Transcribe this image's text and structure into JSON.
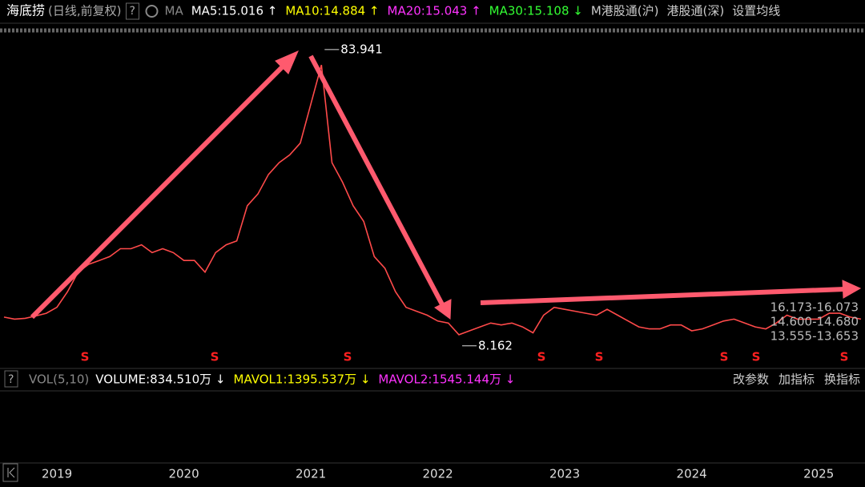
{
  "header": {
    "title": "海底捞",
    "mode": "(日线,前复权)",
    "help": "?",
    "ma_label": "MA",
    "ma": [
      {
        "text": "MA5:15.016 ↑",
        "color": "#ffffff"
      },
      {
        "text": "MA10:14.884 ↑",
        "color": "#ffff00"
      },
      {
        "text": "MA20:15.043 ↑",
        "color": "#ff33ff"
      },
      {
        "text": "MA30:15.108 ↓",
        "color": "#33ff33"
      }
    ],
    "tabs": [
      "M港股通(沪)",
      "港股通(深)",
      "设置均线"
    ]
  },
  "chart_data": {
    "type": "line",
    "color": "#ff4a4a",
    "categories": [
      null,
      null,
      null,
      null,
      null,
      "2019",
      null,
      null,
      null,
      null,
      null,
      null,
      null,
      null,
      null,
      null,
      null,
      "2020",
      null,
      null,
      null,
      null,
      null,
      null,
      null,
      null,
      null,
      null,
      null,
      "2021",
      null,
      null,
      null,
      null,
      null,
      null,
      null,
      null,
      null,
      null,
      null,
      "2022",
      null,
      null,
      null,
      null,
      null,
      null,
      null,
      null,
      null,
      null,
      null,
      "2023",
      null,
      null,
      null,
      null,
      null,
      null,
      null,
      null,
      null,
      null,
      null,
      "2024",
      null,
      null,
      null,
      null,
      null,
      null,
      null,
      null,
      null,
      null,
      null,
      "2025",
      null,
      null,
      null,
      null
    ],
    "values": [
      15.5,
      15.0,
      15.2,
      15.8,
      16.5,
      18,
      22,
      27,
      29,
      30,
      31,
      33,
      33,
      34,
      32,
      33,
      32,
      30,
      30,
      27,
      32,
      34,
      35,
      44,
      47,
      52,
      55,
      57,
      60,
      70,
      80,
      55,
      50,
      44,
      40,
      31,
      28,
      22,
      18,
      17,
      16,
      14.5,
      14,
      11,
      12,
      13,
      14,
      13.5,
      14,
      13,
      11.5,
      16,
      18,
      17.5,
      17,
      16.5,
      16,
      17.5,
      16,
      14.5,
      13,
      12.5,
      12.5,
      13.5,
      13.5,
      12,
      12.5,
      13.5,
      14.5,
      15,
      14,
      13,
      12.5,
      14,
      16,
      15,
      15,
      15,
      16.5,
      16.5,
      15.5,
      15.0
    ],
    "ylim": [
      3.4,
      87.4
    ],
    "high": 83.941,
    "low": 8.162,
    "levels": [
      "16.173-16.073",
      "14.600-14.680",
      "13.555-13.653"
    ],
    "marker": "S"
  },
  "volume_panel": {
    "help": "?",
    "label": "VOL(5,10)",
    "items": [
      {
        "text": "VOLUME:834.510万 ↓",
        "color": "#ffffff"
      },
      {
        "text": "MAVOL1:1395.537万 ↓",
        "color": "#ffff00"
      },
      {
        "text": "MAVOL2:1545.144万 ↓",
        "color": "#ff33ff"
      }
    ],
    "buttons": [
      "改参数",
      "加指标",
      "换指标"
    ]
  }
}
